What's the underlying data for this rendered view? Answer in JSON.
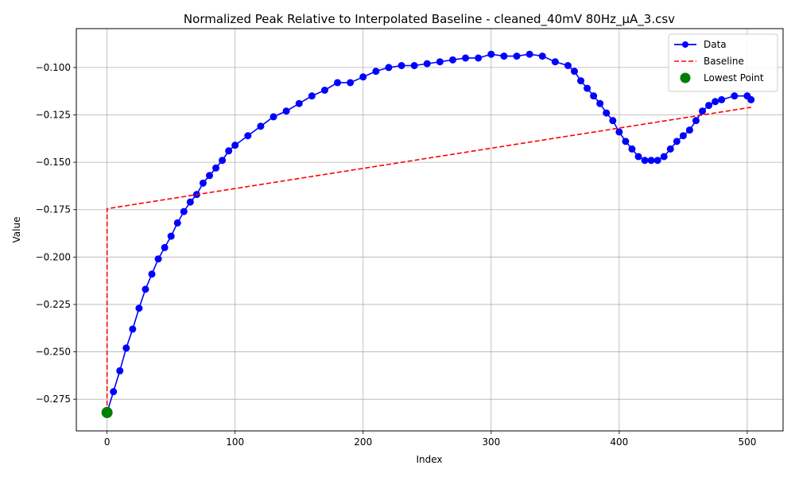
{
  "chart_data": {
    "type": "line",
    "title": "Normalized Peak Relative to Interpolated Baseline - cleaned_40mV 80Hz_µA_3.csv",
    "xlabel": "Index",
    "ylabel": "Value",
    "xlim": [
      -24,
      528
    ],
    "ylim": [
      -0.2917,
      -0.0795
    ],
    "x_ticks": [
      0,
      100,
      200,
      300,
      400,
      500
    ],
    "x_tick_labels": [
      "0",
      "100",
      "200",
      "300",
      "400",
      "500"
    ],
    "y_ticks": [
      -0.275,
      -0.25,
      -0.225,
      -0.2,
      -0.175,
      -0.15,
      -0.125,
      -0.1
    ],
    "y_tick_labels": [
      "−0.275",
      "−0.250",
      "−0.225",
      "−0.200",
      "−0.175",
      "−0.150",
      "−0.125",
      "−0.100"
    ],
    "grid": true,
    "legend_position": "top-right",
    "series": [
      {
        "name": "Data",
        "style": "line-markers",
        "color": "#0000ff",
        "x": [
          0,
          5,
          10,
          15,
          20,
          25,
          30,
          35,
          40,
          45,
          50,
          55,
          60,
          65,
          70,
          75,
          80,
          85,
          90,
          95,
          100,
          110,
          120,
          130,
          140,
          150,
          160,
          170,
          180,
          190,
          200,
          210,
          220,
          230,
          240,
          250,
          260,
          270,
          280,
          290,
          300,
          310,
          320,
          330,
          340,
          350,
          360,
          365,
          370,
          375,
          380,
          385,
          390,
          395,
          400,
          405,
          410,
          415,
          420,
          425,
          430,
          435,
          440,
          445,
          450,
          455,
          460,
          465,
          470,
          475,
          480,
          490,
          500,
          503
        ],
        "values": [
          -0.282,
          -0.271,
          -0.26,
          -0.248,
          -0.238,
          -0.227,
          -0.217,
          -0.209,
          -0.201,
          -0.195,
          -0.189,
          -0.182,
          -0.176,
          -0.171,
          -0.167,
          -0.161,
          -0.157,
          -0.153,
          -0.149,
          -0.144,
          -0.141,
          -0.136,
          -0.131,
          -0.126,
          -0.123,
          -0.119,
          -0.115,
          -0.112,
          -0.108,
          -0.108,
          -0.105,
          -0.102,
          -0.1,
          -0.099,
          -0.099,
          -0.098,
          -0.097,
          -0.096,
          -0.095,
          -0.095,
          -0.093,
          -0.094,
          -0.094,
          -0.093,
          -0.094,
          -0.097,
          -0.099,
          -0.102,
          -0.107,
          -0.111,
          -0.115,
          -0.119,
          -0.124,
          -0.128,
          -0.134,
          -0.139,
          -0.143,
          -0.147,
          -0.149,
          -0.149,
          -0.149,
          -0.147,
          -0.143,
          -0.139,
          -0.136,
          -0.133,
          -0.128,
          -0.123,
          -0.12,
          -0.118,
          -0.117,
          -0.115,
          -0.115,
          -0.117
        ]
      },
      {
        "name": "Baseline",
        "style": "dashed",
        "color": "#ff0000",
        "x": [
          0,
          0,
          503
        ],
        "values": [
          -0.282,
          -0.1745,
          -0.121
        ]
      },
      {
        "name": "Lowest Point",
        "style": "marker",
        "color": "#008000",
        "x": [
          0
        ],
        "values": [
          -0.282
        ]
      }
    ]
  }
}
